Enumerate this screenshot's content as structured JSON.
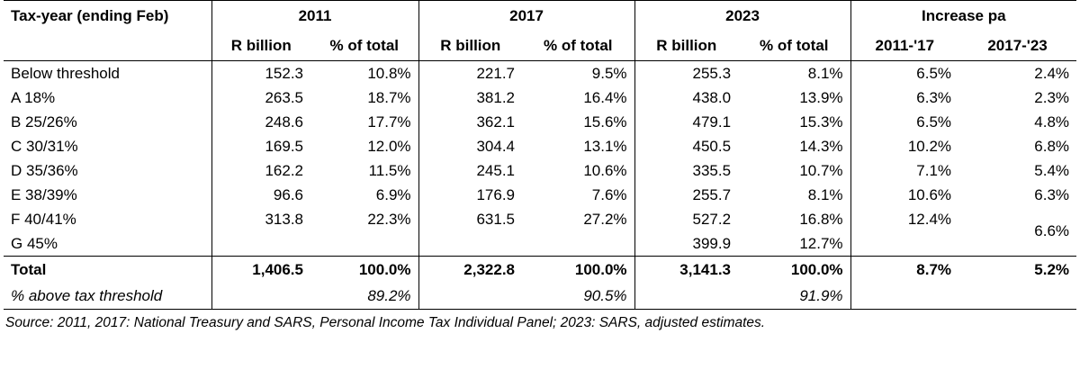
{
  "table": {
    "header": [
      "Tax-year (ending Feb)",
      "2011",
      "2017",
      "2023",
      "Increase pa"
    ],
    "subheader": [
      "R billion",
      "% of total",
      "R billion",
      "% of total",
      "R billion",
      "% of total",
      "2011-'17",
      "2017-'23"
    ],
    "rows": [
      [
        "Below threshold",
        "152.3",
        "10.8%",
        "221.7",
        "9.5%",
        "255.3",
        "8.1%",
        "6.5%",
        "2.4%"
      ],
      [
        "A 18%",
        "263.5",
        "18.7%",
        "381.2",
        "16.4%",
        "438.0",
        "13.9%",
        "6.3%",
        "2.3%"
      ],
      [
        "B 25/26%",
        "248.6",
        "17.7%",
        "362.1",
        "15.6%",
        "479.1",
        "15.3%",
        "6.5%",
        "4.8%"
      ],
      [
        "C 30/31%",
        "169.5",
        "12.0%",
        "304.4",
        "13.1%",
        "450.5",
        "14.3%",
        "10.2%",
        "6.8%"
      ],
      [
        "D 35/36%",
        "162.2",
        "11.5%",
        "245.1",
        "10.6%",
        "335.5",
        "10.7%",
        "7.1%",
        "5.4%"
      ],
      [
        "E 38/39%",
        "96.6",
        "6.9%",
        "176.9",
        "7.6%",
        "255.7",
        "8.1%",
        "10.6%",
        "6.3%"
      ],
      [
        "F 40/41%",
        "313.8",
        "22.3%",
        "631.5",
        "27.2%",
        "527.2",
        "16.8%",
        "12.4%",
        "6.6%"
      ],
      [
        "G 45%",
        null,
        null,
        null,
        null,
        "399.9",
        "12.7%",
        null
      ]
    ],
    "total": [
      "Total",
      "1,406.5",
      "100.0%",
      "2,322.8",
      "100.0%",
      "3,141.3",
      "100.0%",
      "8.7%",
      "5.2%"
    ],
    "above_threshold": [
      "% above tax threshold",
      null,
      "89.2%",
      null,
      "90.5%",
      null,
      "91.9%",
      null,
      null
    ]
  },
  "source": "Source: 2011, 2017: National Treasury and SARS, Personal Income Tax Individual Panel; 2023: SARS, adjusted estimates."
}
